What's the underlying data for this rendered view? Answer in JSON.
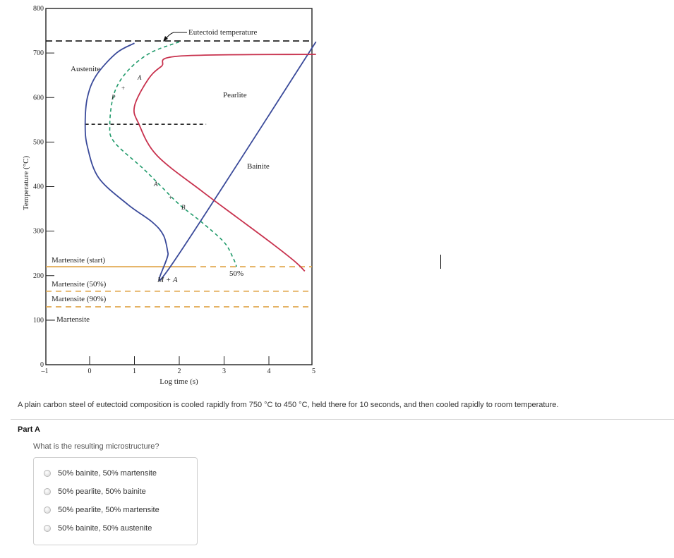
{
  "chart_data": {
    "type": "diagram",
    "xlabel": "Log time (s)",
    "ylabel": "Temperature (°C)",
    "xlim": [
      -1,
      5
    ],
    "ylim": [
      0,
      800
    ],
    "x_ticks": [
      "–1",
      "0",
      "1",
      "2",
      "3",
      "4",
      "5"
    ],
    "y_ticks": [
      "0",
      "100",
      "200",
      "300",
      "400",
      "500",
      "600",
      "700",
      "800"
    ],
    "curves": {
      "transformation_start": [
        [
          1.0,
          722
        ],
        [
          0.6,
          700
        ],
        [
          0.15,
          650
        ],
        [
          -0.05,
          600
        ],
        [
          -0.1,
          540
        ],
        [
          -0.05,
          490
        ],
        [
          0.2,
          420
        ],
        [
          0.85,
          360
        ],
        [
          1.4,
          320
        ],
        [
          1.65,
          290
        ],
        [
          1.75,
          250
        ],
        [
          1.8,
          220
        ]
      ],
      "transformation_50pct": [
        [
          2.0,
          693
        ],
        [
          1.6,
          670
        ],
        [
          1.3,
          640
        ],
        [
          1.0,
          580
        ],
        [
          1.1,
          540
        ],
        [
          1.5,
          470
        ],
        [
          2.5,
          390
        ],
        [
          3.3,
          330
        ],
        [
          4.1,
          270
        ],
        [
          4.6,
          230
        ],
        [
          4.8,
          210
        ]
      ],
      "cooling_path_dashed": [
        [
          2.0,
          725
        ],
        [
          1.35,
          700
        ],
        [
          0.85,
          660
        ],
        [
          0.55,
          610
        ],
        [
          0.45,
          540
        ],
        [
          0.55,
          500
        ],
        [
          1.2,
          440
        ],
        [
          1.6,
          400
        ],
        [
          2.0,
          360
        ],
        [
          2.5,
          320
        ],
        [
          3.0,
          275
        ],
        [
          3.2,
          240
        ],
        [
          3.28,
          220
        ]
      ]
    },
    "reference_lines": [
      {
        "label": "Eutectoid temperature",
        "y": 727
      },
      {
        "label": "Martensite (start)",
        "y": 220
      },
      {
        "label": "Martensite (50%)",
        "y": 165
      },
      {
        "label": "Martensite (90%)",
        "y": 130
      },
      {
        "label": "Martensite",
        "y": 100
      }
    ],
    "isothermal_hold_dashed": {
      "y": 540,
      "x_range": [
        -0.1,
        2.6
      ]
    },
    "region_labels": [
      "Austenite",
      "Pearlite",
      "Bainite",
      "M + A",
      "50%"
    ],
    "point_labels": [
      "A",
      "P",
      "A",
      "B"
    ],
    "colors": {
      "start_curve": "#3a4a9a",
      "fifty_percent_curve": "#c8324e",
      "path_curve": "#1f9a6a",
      "martensite_lines": "#e0a64b",
      "reference_black": "#111111"
    }
  },
  "problem": {
    "text": "A plain carbon steel of eutectoid composition is cooled rapidly from 750 °C to 450 °C, held there for 10 seconds, and then cooled rapidly to room temperature."
  },
  "part": {
    "title": "Part A",
    "question": "What is the resulting microstructure?",
    "options": [
      {
        "label": "50% bainite, 50% martensite"
      },
      {
        "label": "50% pearlite, 50% bainite"
      },
      {
        "label": "50% pearlite, 50% martensite"
      },
      {
        "label": "50% bainite, 50% austenite"
      }
    ]
  }
}
